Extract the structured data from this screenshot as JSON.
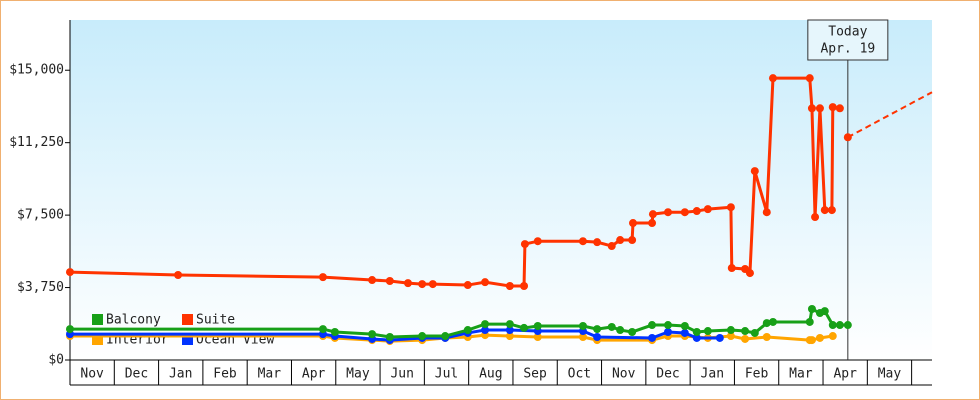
{
  "chart_data": {
    "type": "line",
    "ylim": [
      0,
      17600
    ],
    "yticks": [
      {
        "value": 0,
        "label": "$0"
      },
      {
        "value": 3750,
        "label": "$3,750"
      },
      {
        "value": 7500,
        "label": "$7,500"
      },
      {
        "value": 11250,
        "label": "$11,250"
      },
      {
        "value": 15000,
        "label": "$15,000"
      }
    ],
    "xlim": [
      0,
      19.46
    ],
    "xticks": [
      {
        "value": 0.5,
        "label": "Nov"
      },
      {
        "value": 1.5,
        "label": "Dec"
      },
      {
        "value": 2.5,
        "label": "Jan"
      },
      {
        "value": 3.5,
        "label": "Feb"
      },
      {
        "value": 4.5,
        "label": "Mar"
      },
      {
        "value": 5.5,
        "label": "Apr"
      },
      {
        "value": 6.5,
        "label": "May"
      },
      {
        "value": 7.5,
        "label": "Jun"
      },
      {
        "value": 8.5,
        "label": "Jul"
      },
      {
        "value": 9.5,
        "label": "Aug"
      },
      {
        "value": 10.5,
        "label": "Sep"
      },
      {
        "value": 11.5,
        "label": "Oct"
      },
      {
        "value": 12.5,
        "label": "Nov"
      },
      {
        "value": 13.5,
        "label": "Dec"
      },
      {
        "value": 14.5,
        "label": "Jan"
      },
      {
        "value": 15.5,
        "label": "Feb"
      },
      {
        "value": 16.5,
        "label": "Mar"
      },
      {
        "value": 17.5,
        "label": "Apr"
      },
      {
        "value": 18.5,
        "label": "May"
      }
    ],
    "today": {
      "x": 17.56,
      "label": [
        "Today",
        "Apr. 19"
      ]
    },
    "series": [
      {
        "name": "Balcony",
        "color": "#18a018",
        "x": [
          0,
          5.71,
          5.98,
          6.82,
          7.22,
          7.95,
          8.47,
          8.98,
          9.37,
          9.93,
          10.25,
          10.56,
          11.58,
          11.9,
          12.23,
          12.42,
          12.69,
          13.14,
          13.5,
          13.88,
          14.15,
          14.4,
          14.92,
          15.24,
          15.46,
          15.73,
          15.87,
          16.7,
          16.75,
          16.93,
          17.04,
          17.22,
          17.38,
          17.56
        ],
        "values": [
          1600,
          1600,
          1450,
          1340,
          1190,
          1240,
          1240,
          1550,
          1860,
          1860,
          1660,
          1760,
          1760,
          1600,
          1710,
          1550,
          1450,
          1810,
          1810,
          1760,
          1450,
          1500,
          1550,
          1500,
          1400,
          1910,
          1970,
          1970,
          2640,
          2430,
          2530,
          1810,
          1810,
          1810
        ]
      },
      {
        "name": "Suite",
        "color": "#ff3300",
        "x": [
          0,
          2.44,
          5.71,
          6.82,
          7.22,
          7.63,
          7.95,
          8.19,
          8.98,
          9.37,
          9.93,
          10.25,
          10.27,
          10.56,
          11.58,
          11.9,
          12.23,
          12.42,
          12.69,
          12.71,
          13.14,
          13.16,
          13.5,
          13.88,
          14.15,
          14.4,
          14.92,
          14.94,
          15.24,
          15.35,
          15.46,
          15.73,
          15.87,
          16.7,
          16.75,
          16.82,
          16.93,
          17.04,
          17.2,
          17.22,
          17.38,
          17.47,
          17.56
        ],
        "values": [
          4550,
          4400,
          4290,
          4140,
          4090,
          3980,
          3930,
          3930,
          3880,
          4030,
          3830,
          3830,
          6000,
          6150,
          6150,
          6100,
          5900,
          6210,
          6210,
          7090,
          7090,
          7550,
          7650,
          7650,
          7710,
          7810,
          7910,
          4760,
          4710,
          4500,
          9780,
          7650,
          14590,
          14590,
          13030,
          7400,
          13030,
          7760,
          7760,
          13090,
          13030,
          null,
          11530
        ],
        "forecast": {
          "x": [
            17.56,
            19.46
          ],
          "values": [
            11530,
            13860
          ]
        }
      },
      {
        "name": "Interior",
        "color": "#ffa500",
        "x": [
          0,
          5.71,
          5.98,
          6.82,
          7.22,
          7.95,
          8.47,
          8.98,
          9.37,
          9.93,
          10.56,
          11.58,
          11.9,
          13.14,
          13.5,
          13.88,
          14.4,
          14.92,
          15.24,
          15.73,
          16.7,
          16.72,
          16.75,
          16.93,
          17.22
        ],
        "values": [
          1240,
          1240,
          1140,
          1030,
          980,
          1030,
          1140,
          1190,
          1290,
          1240,
          1190,
          1190,
          1030,
          1030,
          1240,
          1240,
          1140,
          1240,
          1090,
          1190,
          1030,
          null,
          1030,
          1140,
          1240
        ]
      },
      {
        "name": "Ocean View",
        "color": "#0033ff",
        "x": [
          0,
          5.71,
          5.98,
          6.82,
          7.22,
          7.95,
          8.47,
          8.98,
          9.37,
          9.93,
          10.56,
          11.58,
          11.9,
          13.14,
          13.5,
          13.88,
          14.15,
          14.67
        ],
        "values": [
          1340,
          1340,
          1240,
          1090,
          1030,
          1140,
          1140,
          1400,
          1550,
          1550,
          1500,
          1500,
          1190,
          1140,
          1450,
          1400,
          1140,
          1140
        ]
      }
    ]
  }
}
